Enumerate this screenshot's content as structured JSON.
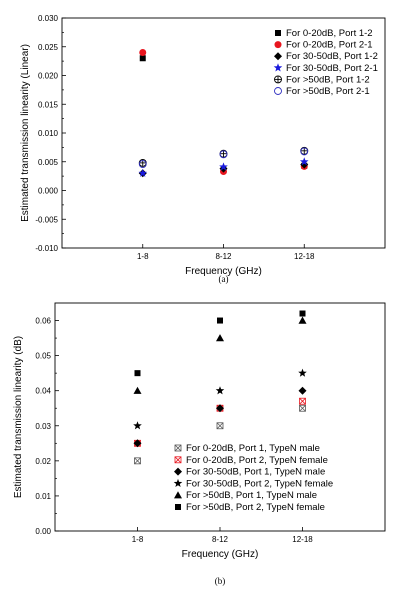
{
  "chart_data": [
    {
      "type": "scatter",
      "caption": "(a)",
      "xlabel": "Frequency (GHz)",
      "ylabel": "Estimated transmission linearity (Linear)",
      "categories": [
        "1-8",
        "8-12",
        "12-18"
      ],
      "ylim": [
        -0.01,
        0.03
      ],
      "yticks": [
        "-0.010",
        "-0.005",
        "0.000",
        "0.005",
        "0.010",
        "0.015",
        "0.020",
        "0.025",
        "0.030"
      ],
      "legend_position": "top-right",
      "series": [
        {
          "name": "For 0-20dB, Port 1-2",
          "marker": "square",
          "color": "#000000",
          "values": [
            0.023,
            0.0035,
            0.0043
          ]
        },
        {
          "name": "For 0-20dB, Port 2-1",
          "marker": "circle",
          "color": "#e8161f",
          "values": [
            0.024,
            0.0033,
            0.0042
          ]
        },
        {
          "name": "For 30-50dB, Port 1-2",
          "marker": "diamond",
          "color": "#000000",
          "values": [
            0.003,
            0.0038,
            0.0045
          ]
        },
        {
          "name": "For 30-50dB, Port 2-1",
          "marker": "star",
          "color": "#1a1adc",
          "values": [
            0.003,
            0.0041,
            0.005
          ]
        },
        {
          "name": "For >50dB, Port 1-2",
          "marker": "circle-cross",
          "color": "#000000",
          "values": [
            0.0048,
            0.0064,
            0.0069
          ]
        },
        {
          "name": "For >50dB, Port 2-1",
          "marker": "circle-open",
          "color": "#3030c0",
          "values": [
            0.0046,
            0.0063,
            0.0068
          ]
        }
      ]
    },
    {
      "type": "scatter",
      "caption": "(b)",
      "xlabel": "Frequency (GHz)",
      "ylabel": "Estimated transmission linearity (dB)",
      "categories": [
        "1-8",
        "8-12",
        "12-18"
      ],
      "ylim": [
        0.0,
        0.065
      ],
      "yticks": [
        "0.00",
        "0.01",
        "0.02",
        "0.03",
        "0.04",
        "0.05",
        "0.06"
      ],
      "legend_position": "bottom-center",
      "series": [
        {
          "name": "For 0-20dB, Port 1, TypeN male",
          "marker": "box-x",
          "color": "#555555",
          "values": [
            0.02,
            0.03,
            0.035
          ]
        },
        {
          "name": "For 0-20dB, Port 2, TypeN female",
          "marker": "box-x",
          "color": "#e8161f",
          "values": [
            0.025,
            0.035,
            0.037
          ]
        },
        {
          "name": "For 30-50dB, Port 1, TypeN male",
          "marker": "diamond",
          "color": "#000000",
          "values": [
            0.025,
            0.035,
            0.04
          ]
        },
        {
          "name": "For 30-50dB, Port 2, TypeN female",
          "marker": "star",
          "color": "#000000",
          "values": [
            0.03,
            0.04,
            0.045
          ]
        },
        {
          "name": "For >50dB, Port 1, TypeN male",
          "marker": "triangle",
          "color": "#000000",
          "values": [
            0.04,
            0.055,
            0.06
          ]
        },
        {
          "name": "For >50dB, Port 2, TypeN female",
          "marker": "square",
          "color": "#000000",
          "values": [
            0.045,
            0.06,
            0.062
          ]
        }
      ]
    }
  ]
}
